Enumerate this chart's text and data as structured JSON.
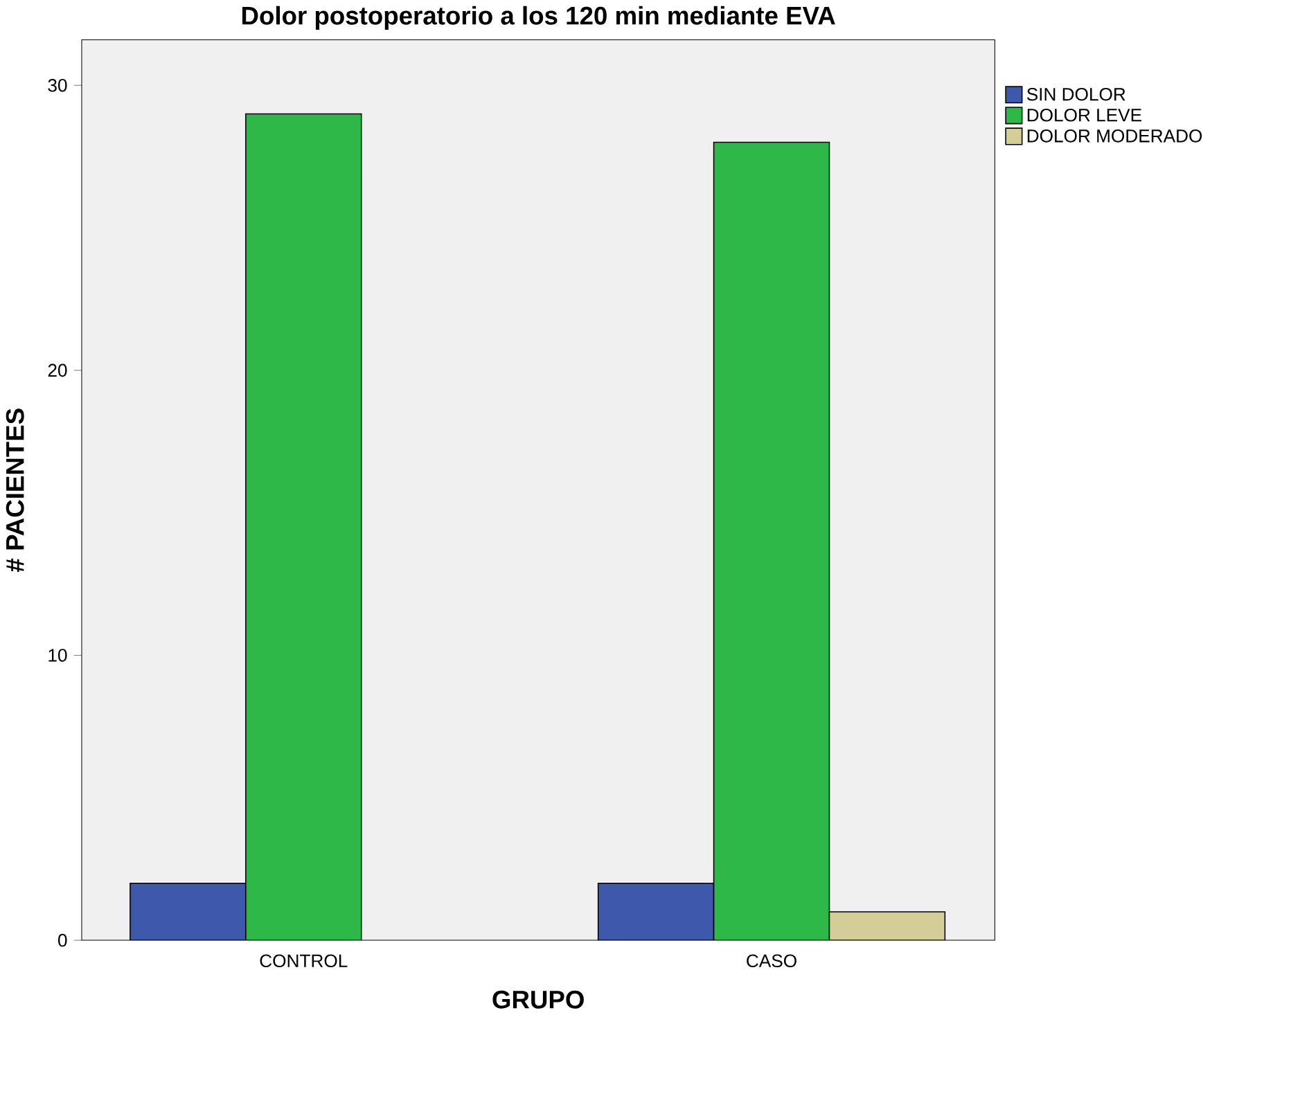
{
  "chart_data": {
    "type": "bar",
    "title": "Dolor postoperatorio a los 120 min mediante EVA",
    "xlabel": "GRUPO",
    "ylabel": "# PACIENTES",
    "categories": [
      "CONTROL",
      "CASO"
    ],
    "series": [
      {
        "name": "SIN DOLOR",
        "color": "#3e58ac",
        "values": [
          2,
          2
        ]
      },
      {
        "name": "DOLOR LEVE",
        "color": "#2eb848",
        "values": [
          29,
          28
        ]
      },
      {
        "name": "DOLOR MODERADO",
        "color": "#d3ce97",
        "values": [
          null,
          1
        ]
      }
    ],
    "ylim": [
      0,
      31.6
    ],
    "yticks": [
      0,
      10,
      20,
      30
    ],
    "grid": false,
    "legend": "top right"
  }
}
